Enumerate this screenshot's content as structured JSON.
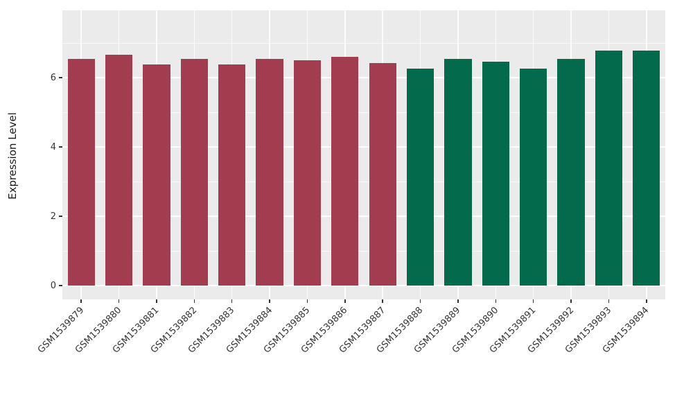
{
  "chart_data": {
    "type": "bar",
    "title": "",
    "xlabel": "",
    "ylabel": "Expression Level",
    "ylim": [
      0,
      7.9
    ],
    "yticks": [
      0,
      2,
      4,
      6
    ],
    "yticks_minor": [
      1,
      3,
      5,
      7
    ],
    "grid": true,
    "legend_position": "none",
    "categories": [
      "GSM1539879",
      "GSM1539880",
      "GSM1539881",
      "GSM1539882",
      "GSM1539883",
      "GSM1539884",
      "GSM1539885",
      "GSM1539886",
      "GSM1539887",
      "GSM1539888",
      "GSM1539889",
      "GSM1539890",
      "GSM1539891",
      "GSM1539892",
      "GSM1539893",
      "GSM1539894"
    ],
    "values": [
      6.54,
      6.66,
      6.38,
      6.54,
      6.38,
      6.54,
      6.5,
      6.6,
      6.42,
      6.26,
      6.54,
      6.46,
      6.26,
      6.54,
      6.78,
      6.78
    ],
    "bar_groups": [
      "group1",
      "group1",
      "group1",
      "group1",
      "group1",
      "group1",
      "group1",
      "group1",
      "group1",
      "group2",
      "group2",
      "group2",
      "group2",
      "group2",
      "group2",
      "group2"
    ],
    "group_colors": {
      "group1": "#A13D4F",
      "group2": "#036B4C"
    },
    "panel_background": "#EBEBEB",
    "grid_color": "#FFFFFF",
    "axis_text_color": "#333333"
  }
}
